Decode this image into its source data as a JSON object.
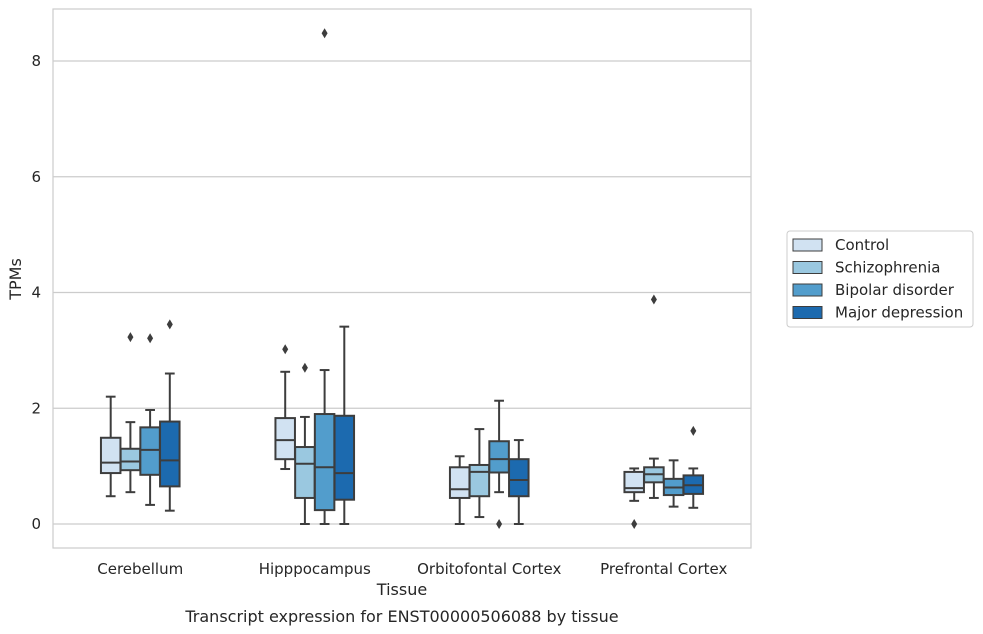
{
  "chart_data": {
    "type": "box",
    "title": "Transcript expression for ENST00000506088 by tissue",
    "xlabel": "Tissue",
    "ylabel": "TPMs",
    "ylim": [
      -0.4,
      8.9
    ],
    "yticks": [
      0,
      2,
      4,
      6,
      8
    ],
    "grid": "horizontal",
    "legend_position": "right",
    "categories": [
      "Cerebellum",
      "Hipppocampus",
      "Orbitofontal Cortex",
      "Prefrontal Cortex"
    ],
    "series": [
      {
        "name": "Control",
        "color": "#d1e2f2",
        "boxes": [
          {
            "whislo": 0.48,
            "q1": 0.88,
            "med": 1.06,
            "q3": 1.49,
            "whishi": 2.2,
            "fliers": []
          },
          {
            "whislo": 0.95,
            "q1": 1.12,
            "med": 1.45,
            "q3": 1.83,
            "whishi": 2.63,
            "fliers": [
              3.02
            ]
          },
          {
            "whislo": 0.0,
            "q1": 0.45,
            "med": 0.6,
            "q3": 0.98,
            "whishi": 1.17,
            "fliers": []
          },
          {
            "whislo": 0.4,
            "q1": 0.55,
            "med": 0.62,
            "q3": 0.9,
            "whishi": 0.96,
            "fliers": [
              0.0
            ]
          }
        ]
      },
      {
        "name": "Schizophrenia",
        "color": "#9ac8e0",
        "boxes": [
          {
            "whislo": 0.55,
            "q1": 0.93,
            "med": 1.08,
            "q3": 1.3,
            "whishi": 1.76,
            "fliers": [
              3.23
            ]
          },
          {
            "whislo": 0.0,
            "q1": 0.45,
            "med": 1.04,
            "q3": 1.33,
            "whishi": 1.85,
            "fliers": [
              2.7
            ]
          },
          {
            "whislo": 0.12,
            "q1": 0.48,
            "med": 0.9,
            "q3": 1.02,
            "whishi": 1.64,
            "fliers": []
          },
          {
            "whislo": 0.45,
            "q1": 0.72,
            "med": 0.86,
            "q3": 0.98,
            "whishi": 1.13,
            "fliers": [
              3.88
            ]
          }
        ]
      },
      {
        "name": "Bipolar disorder",
        "color": "#529dcc",
        "boxes": [
          {
            "whislo": 0.33,
            "q1": 0.85,
            "med": 1.28,
            "q3": 1.67,
            "whishi": 1.97,
            "fliers": [
              3.21
            ]
          },
          {
            "whislo": 0.0,
            "q1": 0.24,
            "med": 0.98,
            "q3": 1.9,
            "whishi": 2.66,
            "fliers": [
              8.48
            ]
          },
          {
            "whislo": 0.55,
            "q1": 0.89,
            "med": 1.12,
            "q3": 1.43,
            "whishi": 2.13,
            "fliers": [
              0.0
            ]
          },
          {
            "whislo": 0.3,
            "q1": 0.5,
            "med": 0.63,
            "q3": 0.78,
            "whishi": 1.1,
            "fliers": []
          }
        ]
      },
      {
        "name": "Major depression",
        "color": "#1c6aaf",
        "boxes": [
          {
            "whislo": 0.23,
            "q1": 0.65,
            "med": 1.1,
            "q3": 1.77,
            "whishi": 2.6,
            "fliers": [
              3.45
            ]
          },
          {
            "whislo": 0.0,
            "q1": 0.42,
            "med": 0.88,
            "q3": 1.87,
            "whishi": 3.41,
            "fliers": []
          },
          {
            "whislo": 0.0,
            "q1": 0.48,
            "med": 0.76,
            "q3": 1.12,
            "whishi": 1.45,
            "fliers": []
          },
          {
            "whislo": 0.28,
            "q1": 0.52,
            "med": 0.67,
            "q3": 0.84,
            "whishi": 0.96,
            "fliers": [
              1.61
            ]
          }
        ]
      }
    ]
  }
}
